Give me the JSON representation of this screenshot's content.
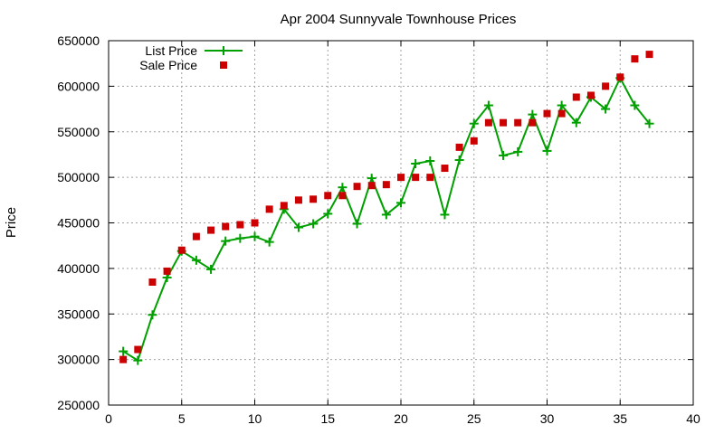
{
  "chart_data": {
    "type": "line",
    "title": "Apr 2004 Sunnyvale Townhouse Prices",
    "xlabel": "",
    "ylabel": "Price",
    "xlim": [
      0,
      40
    ],
    "ylim": [
      250000,
      650000
    ],
    "x_ticks": [
      0,
      5,
      10,
      15,
      20,
      25,
      30,
      35,
      40
    ],
    "y_ticks": [
      250000,
      300000,
      350000,
      400000,
      450000,
      500000,
      550000,
      600000,
      650000
    ],
    "grid": true,
    "legend_position": "top-left",
    "x": [
      1,
      2,
      3,
      4,
      5,
      6,
      7,
      8,
      9,
      10,
      11,
      12,
      13,
      14,
      15,
      16,
      17,
      18,
      19,
      20,
      21,
      22,
      23,
      24,
      25,
      26,
      27,
      28,
      29,
      30,
      31,
      32,
      33,
      34,
      35,
      36,
      37
    ],
    "series": [
      {
        "name": "List Price",
        "style": "linespoints",
        "color": "#00a000",
        "marker": "plus",
        "values": [
          309000,
          299000,
          349000,
          390000,
          419000,
          409000,
          399000,
          430000,
          433000,
          435000,
          429000,
          465000,
          445000,
          449000,
          460000,
          489000,
          449000,
          499000,
          459000,
          472000,
          515000,
          518000,
          459000,
          519000,
          559000,
          579000,
          524000,
          528000,
          569000,
          529000,
          579000,
          560000,
          588000,
          575000,
          609000,
          579000,
          559000
        ]
      },
      {
        "name": "Sale Price",
        "style": "points",
        "color": "#cc0000",
        "marker": "square",
        "values": [
          300000,
          311000,
          385000,
          397000,
          420000,
          435000,
          442000,
          446000,
          448000,
          450000,
          465000,
          469000,
          475000,
          476000,
          480000,
          480000,
          490000,
          491000,
          492000,
          500000,
          500000,
          500000,
          510000,
          533000,
          540000,
          560000,
          560000,
          560000,
          560000,
          570000,
          570000,
          588000,
          590000,
          600000,
          610000,
          630000,
          635000
        ]
      }
    ]
  }
}
